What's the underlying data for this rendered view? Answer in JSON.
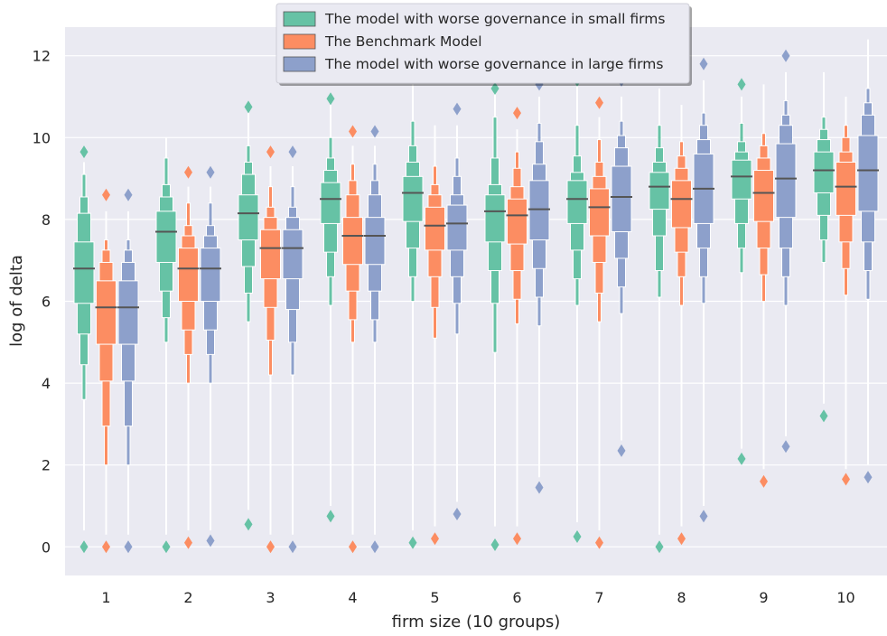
{
  "chart_data": {
    "type": "boxen",
    "xlabel": "firm size (10 groups)",
    "ylabel": "log of delta",
    "categories": [
      "1",
      "2",
      "3",
      "4",
      "5",
      "6",
      "7",
      "8",
      "9",
      "10"
    ],
    "yticks": [
      "0",
      "2",
      "4",
      "6",
      "8",
      "10",
      "12"
    ],
    "ylim": [
      -0.7,
      12.7
    ],
    "grid": true,
    "legend_position": "top-center",
    "series": [
      {
        "name": "The model with worse governance in small firms",
        "color": "#66c2a5",
        "medians": [
          6.8,
          7.7,
          8.15,
          8.5,
          8.65,
          8.2,
          8.5,
          8.8,
          9.05,
          9.2
        ],
        "levels": [
          [
            [
              5.95,
              7.45
            ],
            [
              5.2,
              8.15
            ],
            [
              4.45,
              8.55
            ],
            [
              3.6,
              9.1
            ]
          ],
          [
            [
              6.95,
              8.2
            ],
            [
              6.25,
              8.55
            ],
            [
              5.6,
              8.85
            ],
            [
              5.0,
              9.5
            ]
          ],
          [
            [
              7.5,
              8.6
            ],
            [
              6.85,
              9.1
            ],
            [
              6.2,
              9.4
            ],
            [
              5.5,
              9.8
            ]
          ],
          [
            [
              7.9,
              8.9
            ],
            [
              7.2,
              9.2
            ],
            [
              6.6,
              9.5
            ],
            [
              5.9,
              10.0
            ]
          ],
          [
            [
              7.95,
              9.05
            ],
            [
              7.3,
              9.4
            ],
            [
              6.6,
              9.8
            ],
            [
              6.0,
              10.4
            ]
          ],
          [
            [
              7.45,
              8.6
            ],
            [
              6.75,
              8.85
            ],
            [
              5.95,
              9.5
            ],
            [
              4.75,
              10.5
            ]
          ],
          [
            [
              7.9,
              8.95
            ],
            [
              7.25,
              9.15
            ],
            [
              6.55,
              9.55
            ],
            [
              5.9,
              10.3
            ]
          ],
          [
            [
              8.25,
              9.15
            ],
            [
              7.6,
              9.4
            ],
            [
              6.75,
              9.75
            ],
            [
              6.1,
              10.3
            ]
          ],
          [
            [
              8.5,
              9.45
            ],
            [
              7.9,
              9.65
            ],
            [
              7.3,
              9.9
            ],
            [
              6.7,
              10.35
            ]
          ],
          [
            [
              8.65,
              9.65
            ],
            [
              8.1,
              9.95
            ],
            [
              7.5,
              10.2
            ],
            [
              6.95,
              10.5
            ]
          ]
        ],
        "whiskers": [
          [
            0.4,
            9.4
          ],
          [
            0.3,
            10.0
          ],
          [
            0.9,
            10.6
          ],
          [
            1.0,
            10.8
          ],
          [
            0.4,
            11.3
          ],
          [
            0.5,
            11.2
          ],
          [
            0.6,
            11.3
          ],
          [
            0.3,
            11.2
          ],
          [
            2.4,
            11.0
          ],
          [
            3.5,
            11.6
          ]
        ],
        "outliers": [
          [
            0.0,
            9.65
          ],
          [
            0.0
          ],
          [
            0.55,
            10.75
          ],
          [
            0.75,
            10.95
          ],
          [
            0.1
          ],
          [
            0.05,
            11.2
          ],
          [
            0.25,
            11.4
          ],
          [
            0.0
          ],
          [
            2.15,
            11.3
          ],
          [
            3.2
          ]
        ]
      },
      {
        "name": "The Benchmark Model",
        "color": "#fc8d62",
        "medians": [
          5.85,
          6.8,
          7.3,
          7.6,
          7.85,
          8.1,
          8.3,
          8.5,
          8.65,
          8.8
        ],
        "levels": [
          [
            [
              4.95,
              6.5
            ],
            [
              4.05,
              6.95
            ],
            [
              2.95,
              7.25
            ],
            [
              2.0,
              7.5
            ]
          ],
          [
            [
              6.0,
              7.3
            ],
            [
              5.3,
              7.6
            ],
            [
              4.7,
              7.85
            ],
            [
              4.0,
              8.4
            ]
          ],
          [
            [
              6.55,
              7.75
            ],
            [
              5.85,
              8.05
            ],
            [
              5.05,
              8.3
            ],
            [
              4.2,
              8.8
            ]
          ],
          [
            [
              6.9,
              8.05
            ],
            [
              6.25,
              8.6
            ],
            [
              5.55,
              8.95
            ],
            [
              5.0,
              9.35
            ]
          ],
          [
            [
              7.25,
              8.3
            ],
            [
              6.6,
              8.6
            ],
            [
              5.85,
              8.85
            ],
            [
              5.1,
              9.3
            ]
          ],
          [
            [
              7.4,
              8.5
            ],
            [
              6.75,
              8.8
            ],
            [
              6.05,
              9.25
            ],
            [
              5.45,
              9.65
            ]
          ],
          [
            [
              7.6,
              8.75
            ],
            [
              6.95,
              9.05
            ],
            [
              6.2,
              9.4
            ],
            [
              5.5,
              9.95
            ]
          ],
          [
            [
              7.8,
              8.95
            ],
            [
              7.2,
              9.25
            ],
            [
              6.6,
              9.55
            ],
            [
              5.9,
              9.9
            ]
          ],
          [
            [
              7.95,
              9.2
            ],
            [
              7.3,
              9.5
            ],
            [
              6.65,
              9.8
            ],
            [
              6.0,
              10.1
            ]
          ],
          [
            [
              8.1,
              9.4
            ],
            [
              7.45,
              9.65
            ],
            [
              6.8,
              10.0
            ],
            [
              6.15,
              10.3
            ]
          ]
        ],
        "whiskers": [
          [
            0.3,
            8.2
          ],
          [
            0.4,
            8.8
          ],
          [
            0.3,
            9.3
          ],
          [
            0.3,
            9.8
          ],
          [
            0.5,
            10.3
          ],
          [
            0.5,
            10.2
          ],
          [
            0.4,
            10.5
          ],
          [
            0.5,
            10.8
          ],
          [
            1.9,
            11.3
          ],
          [
            1.9,
            11.0
          ]
        ],
        "outliers": [
          [
            0.0,
            8.6
          ],
          [
            0.1,
            9.15
          ],
          [
            0.0,
            9.65
          ],
          [
            0.0,
            10.15
          ],
          [
            0.2
          ],
          [
            0.2,
            10.6
          ],
          [
            0.1,
            10.85
          ],
          [
            0.2
          ],
          [
            1.6
          ],
          [
            1.65
          ]
        ]
      },
      {
        "name": "The model with worse governance in large firms",
        "color": "#8da0cb",
        "medians": [
          5.85,
          6.8,
          7.3,
          7.6,
          7.9,
          8.25,
          8.55,
          8.75,
          9.0,
          9.2
        ],
        "levels": [
          [
            [
              4.95,
              6.5
            ],
            [
              4.05,
              6.95
            ],
            [
              2.95,
              7.25
            ],
            [
              2.0,
              7.5
            ]
          ],
          [
            [
              6.0,
              7.3
            ],
            [
              5.3,
              7.6
            ],
            [
              4.7,
              7.85
            ],
            [
              4.0,
              8.4
            ]
          ],
          [
            [
              6.55,
              7.75
            ],
            [
              5.8,
              8.05
            ],
            [
              5.0,
              8.3
            ],
            [
              4.2,
              8.8
            ]
          ],
          [
            [
              6.9,
              8.05
            ],
            [
              6.25,
              8.6
            ],
            [
              5.55,
              8.95
            ],
            [
              5.0,
              9.35
            ]
          ],
          [
            [
              7.25,
              8.35
            ],
            [
              6.6,
              8.6
            ],
            [
              5.95,
              9.05
            ],
            [
              5.2,
              9.5
            ]
          ],
          [
            [
              7.5,
              8.95
            ],
            [
              6.8,
              9.35
            ],
            [
              6.1,
              9.9
            ],
            [
              5.4,
              10.35
            ]
          ],
          [
            [
              7.7,
              9.3
            ],
            [
              7.05,
              9.75
            ],
            [
              6.35,
              10.05
            ],
            [
              5.7,
              10.4
            ]
          ],
          [
            [
              7.9,
              9.6
            ],
            [
              7.3,
              9.95
            ],
            [
              6.6,
              10.3
            ],
            [
              5.95,
              10.6
            ]
          ],
          [
            [
              8.05,
              9.85
            ],
            [
              7.3,
              10.3
            ],
            [
              6.6,
              10.55
            ],
            [
              5.9,
              10.9
            ]
          ],
          [
            [
              8.2,
              10.05
            ],
            [
              7.45,
              10.55
            ],
            [
              6.75,
              10.85
            ],
            [
              6.05,
              11.2
            ]
          ]
        ],
        "whiskers": [
          [
            0.3,
            8.2
          ],
          [
            0.4,
            8.8
          ],
          [
            0.3,
            9.3
          ],
          [
            0.3,
            9.8
          ],
          [
            1.1,
            10.3
          ],
          [
            1.7,
            11.0
          ],
          [
            2.6,
            11.0
          ],
          [
            1.0,
            11.4
          ],
          [
            2.7,
            11.6
          ],
          [
            2.0,
            12.4
          ]
        ],
        "outliers": [
          [
            0.0,
            8.6
          ],
          [
            0.15,
            9.15
          ],
          [
            0.0,
            9.65
          ],
          [
            0.0,
            10.15
          ],
          [
            0.8,
            10.7
          ],
          [
            1.45,
            11.3
          ],
          [
            2.35,
            11.4
          ],
          [
            0.75,
            11.8
          ],
          [
            2.45,
            12.0
          ],
          [
            1.7
          ]
        ]
      }
    ]
  }
}
